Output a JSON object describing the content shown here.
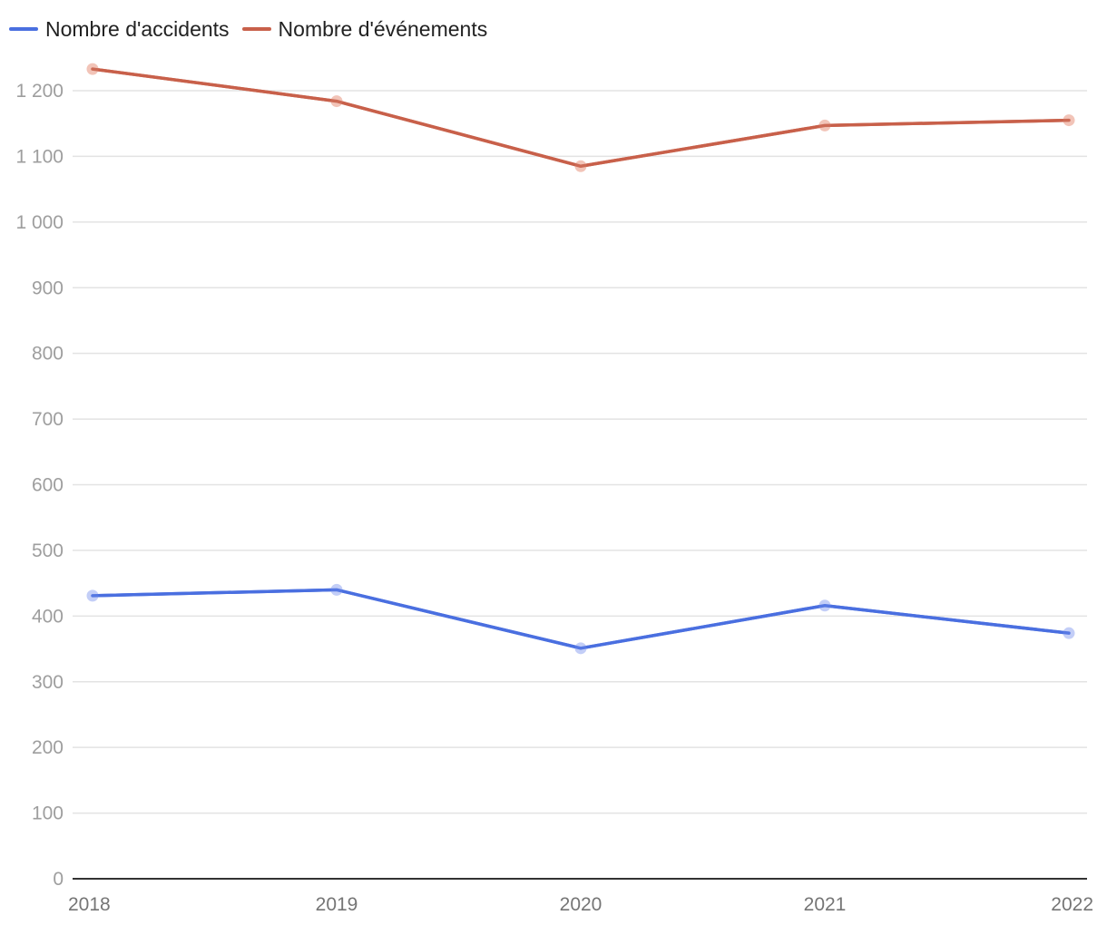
{
  "chart_data": {
    "type": "line",
    "title": "",
    "xlabel": "",
    "ylabel": "",
    "categories": [
      "2018",
      "2019",
      "2020",
      "2021",
      "2022"
    ],
    "series": [
      {
        "name": "Nombre d'accidents",
        "color": "#4a6fe0",
        "marker_color": "#c3cef7",
        "values": [
          431,
          440,
          351,
          416,
          374
        ]
      },
      {
        "name": "Nombre d'événements",
        "color": "#c8604a",
        "marker_color": "#f2c4b8",
        "values": [
          1233,
          1184,
          1085,
          1147,
          1155
        ]
      }
    ],
    "ylim": [
      0,
      1200
    ],
    "yticks": [
      0,
      100,
      200,
      300,
      400,
      500,
      600,
      700,
      800,
      900,
      1000,
      1100,
      1200
    ],
    "ytick_labels": [
      "0",
      "100",
      "200",
      "300",
      "400",
      "500",
      "600",
      "700",
      "800",
      "900",
      "1 000",
      "1 100",
      "1 200"
    ],
    "grid": true,
    "legend_position": "top-left"
  }
}
